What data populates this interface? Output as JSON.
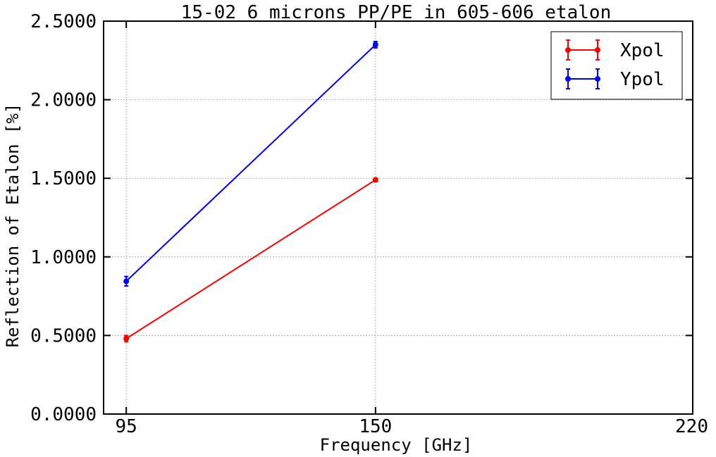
{
  "chart_data": {
    "type": "line",
    "title": "15-02 6 microns PP/PE in 605-606 etalon",
    "xlabel": "Frequency [GHz]",
    "ylabel": "Reflection of Etalon [%]",
    "xlim": [
      90,
      220
    ],
    "ylim": [
      0,
      2.5
    ],
    "xticks": [
      95,
      150,
      220
    ],
    "xtick_labels": [
      "95",
      "150",
      "220"
    ],
    "yticks": [
      0,
      0.5,
      1.0,
      1.5,
      2.0,
      2.5
    ],
    "ytick_labels": [
      "0.0000",
      "0.5000",
      "1.0000",
      "1.5000",
      "2.0000",
      "2.5000"
    ],
    "grid": true,
    "legend_position": "top-right",
    "x": [
      95,
      150
    ],
    "series": [
      {
        "name": "Xpol",
        "color": "#ff0000",
        "values": [
          0.48,
          1.49
        ],
        "errors": [
          0.02,
          0.01
        ]
      },
      {
        "name": "Ypol",
        "color": "#0000ff",
        "values": [
          0.845,
          2.35
        ],
        "errors": [
          0.03,
          0.02
        ]
      }
    ]
  }
}
